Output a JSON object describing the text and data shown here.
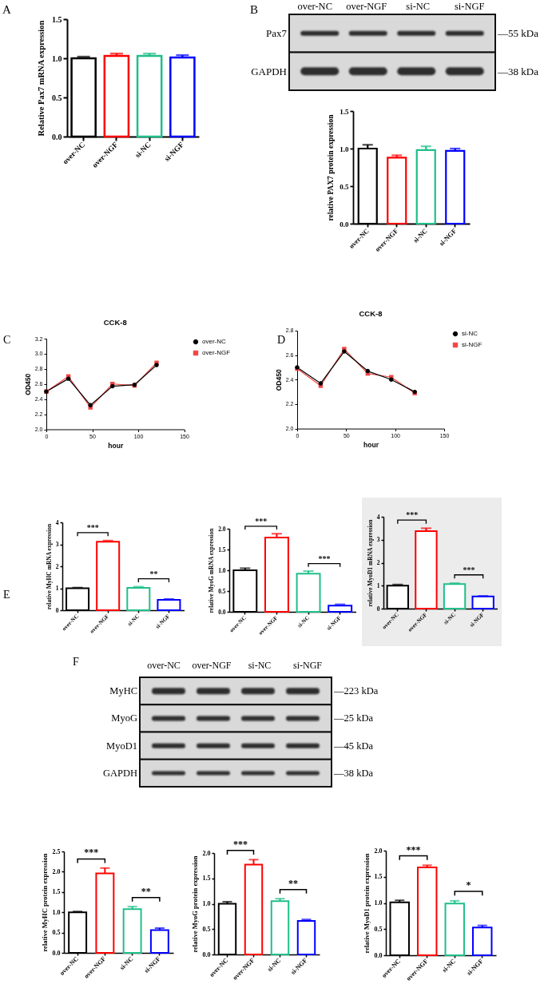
{
  "chart_data": [
    {
      "type": "bar",
      "ylabel": "Relative Pax7 mRNA expression",
      "categories": [
        "over-NC",
        "over-NGF",
        "si-NC",
        "si-NGF"
      ],
      "values": [
        1.0,
        1.03,
        1.03,
        1.01
      ],
      "colors": [
        "#000000",
        "#ff0000",
        "#1fbf8a",
        "#0000ff"
      ],
      "errors": [
        [
          1.0,
          1.02
        ],
        [
          1.03,
          1.06
        ],
        [
          1.03,
          1.06
        ],
        [
          1.01,
          1.04
        ]
      ],
      "ylim": [
        0,
        1.5
      ],
      "yticks": [
        {
          "value": 0,
          "label": "0.0"
        },
        0.5,
        {
          "value": 1,
          "label": "1.0"
        },
        1.5
      ],
      "annotations": [
        "A"
      ]
    },
    {
      "type": "other",
      "categories": [
        "over-NC",
        "over-NGF",
        "si-NC",
        "si-NGF"
      ],
      "y_categories": [
        "Pax7",
        "GAPDH"
      ],
      "y2_categories": [
        "—55 kDa",
        "—38 kDa"
      ],
      "annotations": [
        "B"
      ]
    },
    {
      "type": "bar",
      "ylabel": "relative PAX7 protein expression",
      "categories": [
        "over-NC",
        "over-NGF",
        "si-NC",
        "si-NGF"
      ],
      "values": [
        1.0,
        0.88,
        0.98,
        0.97
      ],
      "colors": [
        "#000000",
        "#ff0000",
        "#1fbf8a",
        "#0000ff"
      ],
      "errors": [
        [
          1.0,
          1.05
        ],
        [
          0.88,
          0.91
        ],
        [
          0.98,
          1.03
        ],
        [
          0.97,
          1.0
        ]
      ],
      "ylim": [
        0,
        1.5
      ],
      "yticks": [
        {
          "value": 0,
          "label": "0.0"
        },
        0.5,
        {
          "value": 1,
          "label": "1.0"
        },
        1.5
      ]
    },
    {
      "type": "line",
      "title": "CCK-8",
      "xlabel": "hour",
      "ylabel": "OD450",
      "x": [
        0,
        24,
        48,
        72,
        96,
        120
      ],
      "series": [
        {
          "name": "over-NC",
          "color": "#000000",
          "marker": "circle",
          "values": [
            2.5,
            2.67,
            2.32,
            2.57,
            2.59,
            2.85
          ]
        },
        {
          "name": "over-NGF",
          "color": "#f04545",
          "marker": "square",
          "values": [
            2.5,
            2.7,
            2.29,
            2.6,
            2.58,
            2.88
          ]
        }
      ],
      "xlim": [
        0,
        150
      ],
      "xticks": [
        0,
        50,
        100,
        150
      ],
      "ylim": [
        2,
        3.2
      ],
      "yticks": [
        {
          "value": 2,
          "label": "2.0"
        },
        2.2,
        2.4,
        2.6,
        2.8,
        {
          "value": 3,
          "label": "3.0"
        },
        3.2
      ],
      "legend": "right",
      "line_style": "solid",
      "annotations": [
        "C"
      ]
    },
    {
      "type": "line",
      "title": "CCK-8",
      "xlabel": "hour",
      "ylabel": "OD450",
      "x": [
        0,
        24,
        48,
        72,
        96,
        120
      ],
      "series": [
        {
          "name": "si-NC",
          "color": "#000000",
          "marker": "circle",
          "values": [
            2.5,
            2.37,
            2.63,
            2.47,
            2.4,
            2.3
          ]
        },
        {
          "name": "si-NGF",
          "color": "#f04545",
          "marker": "square",
          "values": [
            2.49,
            2.35,
            2.65,
            2.45,
            2.42,
            2.29
          ]
        }
      ],
      "xlim": [
        0,
        150
      ],
      "xticks": [
        0,
        50,
        100,
        150
      ],
      "ylim": [
        2,
        2.8
      ],
      "yticks": [
        {
          "value": 2,
          "label": "2.0"
        },
        2.2,
        2.4,
        2.6,
        2.8
      ],
      "legend": "right",
      "line_style": "solid",
      "annotations": [
        "D"
      ]
    },
    {
      "type": "bar",
      "ylabel": "relative MyHC mRNA expression",
      "categories": [
        "over-NC",
        "over-NGF",
        "si-NC",
        "si-NGF"
      ],
      "values": [
        1.0,
        3.12,
        1.02,
        0.47
      ],
      "colors": [
        "#000000",
        "#ff0000",
        "#1fbf8a",
        "#0000ff"
      ],
      "errors": [
        [
          1.0,
          1.03
        ],
        [
          3.12,
          3.17
        ],
        [
          1.02,
          1.07
        ],
        [
          0.47,
          0.51
        ]
      ],
      "ylim": [
        0,
        4
      ],
      "yticks": [
        0,
        1,
        2,
        3,
        4
      ],
      "annotations": [
        "E",
        "***",
        "**"
      ]
    },
    {
      "type": "bar",
      "ylabel": "relative MyoG mRNA expression",
      "categories": [
        "over-NC",
        "over-NGF",
        "si-NC",
        "si-NGF"
      ],
      "values": [
        1.0,
        1.79,
        0.92,
        0.15
      ],
      "colors": [
        "#000000",
        "#ff0000",
        "#1fbf8a",
        "#0000ff"
      ],
      "errors": [
        [
          1.0,
          1.05
        ],
        [
          1.79,
          1.88
        ],
        [
          0.92,
          0.98
        ],
        [
          0.15,
          0.18
        ]
      ],
      "ylim": [
        0,
        2
      ],
      "yticks": [
        {
          "value": 0,
          "label": "0.0"
        },
        0.5,
        {
          "value": 1,
          "label": "1.0"
        },
        1.5,
        {
          "value": 2,
          "label": "2.0"
        }
      ],
      "annotations": [
        "***",
        "***"
      ]
    },
    {
      "type": "bar",
      "ylabel": "relative MyoD1 mRNA expression",
      "categories": [
        "over-NC",
        "over-NGF",
        "si-NC",
        "si-NGF"
      ],
      "values": [
        1.0,
        3.37,
        1.07,
        0.53
      ],
      "colors": [
        "#000000",
        "#ff0000",
        "#1fbf8a",
        "#0000ff"
      ],
      "errors": [
        [
          1.0,
          1.05
        ],
        [
          3.37,
          3.5
        ],
        [
          1.07,
          1.11
        ],
        [
          0.53,
          0.55
        ]
      ],
      "ylim": [
        0,
        4
      ],
      "yticks": [
        0,
        1,
        2,
        3,
        4
      ],
      "annotations": [
        "***",
        "***"
      ]
    },
    {
      "type": "other",
      "categories": [
        "over-NC",
        "over-NGF",
        "si-NC",
        "si-NGF"
      ],
      "y_categories": [
        "MyHC",
        "MyoG",
        "MyoD1",
        "GAPDH"
      ],
      "y2_categories": [
        "—223 kDa",
        "—25 kDa",
        "—45 kDa",
        "—38 kDa"
      ],
      "annotations": [
        "F"
      ]
    },
    {
      "type": "bar",
      "ylabel": "relative MyHC protein expression",
      "categories": [
        "over-NC",
        "over-NGF",
        "si-NC",
        "si-NGF"
      ],
      "values": [
        1.0,
        1.96,
        1.08,
        0.56
      ],
      "colors": [
        "#000000",
        "#ff0000",
        "#1fbf8a",
        "#0000ff"
      ],
      "errors": [
        [
          1.0,
          1.02
        ],
        [
          1.96,
          2.09
        ],
        [
          1.08,
          1.14
        ],
        [
          0.56,
          0.61
        ]
      ],
      "ylim": [
        0,
        2.5
      ],
      "yticks": [
        {
          "value": 0,
          "label": "0.0"
        },
        0.5,
        {
          "value": 1,
          "label": "1.0"
        },
        1.5,
        {
          "value": 2,
          "label": "2.0"
        },
        2.5
      ],
      "annotations": [
        "***",
        "**"
      ]
    },
    {
      "type": "bar",
      "ylabel": "relative MyoG protein expression",
      "categories": [
        "over-NC",
        "over-NGF",
        "si-NC",
        "si-NGF"
      ],
      "values": [
        1.0,
        1.77,
        1.05,
        0.66
      ],
      "colors": [
        "#000000",
        "#ff0000",
        "#1fbf8a",
        "#0000ff"
      ],
      "errors": [
        [
          1.0,
          1.04
        ],
        [
          1.77,
          1.87
        ],
        [
          1.05,
          1.1
        ],
        [
          0.66,
          0.69
        ]
      ],
      "ylim": [
        0,
        2
      ],
      "yticks": [
        {
          "value": 0,
          "label": "0.0"
        },
        0.5,
        {
          "value": 1,
          "label": "1.0"
        },
        1.5,
        {
          "value": 2,
          "label": "2.0"
        }
      ],
      "annotations": [
        "***",
        "**"
      ]
    },
    {
      "type": "bar",
      "ylabel": "relative MyoD1 protein expression",
      "categories": [
        "over-NC",
        "over-NGF",
        "si-NC",
        "si-NGF"
      ],
      "values": [
        1.01,
        1.68,
        0.99,
        0.53
      ],
      "colors": [
        "#000000",
        "#ff0000",
        "#1fbf8a",
        "#0000ff"
      ],
      "errors": [
        [
          1.01,
          1.05
        ],
        [
          1.68,
          1.72
        ],
        [
          0.99,
          1.04
        ],
        [
          0.53,
          0.57
        ]
      ],
      "ylim": [
        0,
        2
      ],
      "yticks": [
        {
          "value": 0,
          "label": "0.0"
        },
        0.5,
        {
          "value": 1,
          "label": "1.0"
        },
        1.5,
        {
          "value": 2,
          "label": "2.0"
        }
      ],
      "annotations": [
        "***",
        "*"
      ]
    }
  ]
}
